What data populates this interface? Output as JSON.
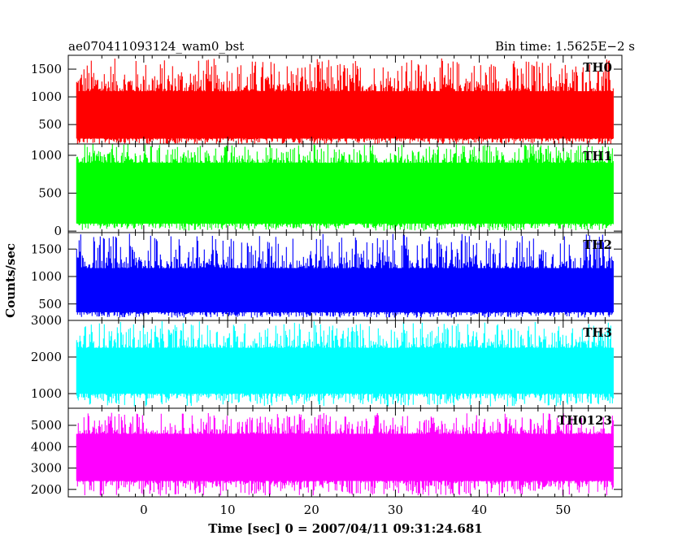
{
  "header": {
    "left_title": "ae070411093124_wam0_bst",
    "right_title": "Bin time: 1.5625E−2 s"
  },
  "chart_data": {
    "type": "line",
    "xlabel": "Time [sec] 0 = 2007/04/11 09:31:24.681",
    "ylabel": "Counts/sec",
    "xlim": [
      -9,
      57
    ],
    "x_ticks": [
      0,
      10,
      20,
      30,
      40,
      50
    ],
    "x_data_range": [
      -8,
      56
    ],
    "panels": [
      {
        "name": "TH0",
        "color": "#ff0000",
        "ylim": [
          150,
          1750
        ],
        "y_ticks": [
          500,
          1000,
          1500
        ],
        "band": [
          250,
          1100
        ],
        "max_peak": 1700,
        "min_dip": 130
      },
      {
        "name": "TH1",
        "color": "#00ff00",
        "ylim": [
          -20,
          1150
        ],
        "y_ticks": [
          0,
          500,
          1000
        ],
        "band": [
          100,
          900
        ],
        "max_peak": 1150,
        "min_dip": 5
      },
      {
        "name": "TH2",
        "color": "#0000ff",
        "ylim": [
          200,
          1800
        ],
        "y_ticks": [
          500,
          1000,
          1500
        ],
        "band": [
          350,
          1150
        ],
        "max_peak": 1780,
        "min_dip": 250
      },
      {
        "name": "TH3",
        "color": "#00ffff",
        "ylim": [
          600,
          3000
        ],
        "y_ticks": [
          1000,
          2000,
          3000
        ],
        "band": [
          1000,
          2250
        ],
        "max_peak": 2980,
        "min_dip": 650
      },
      {
        "name": "TH0123",
        "color": "#ff00ff",
        "ylim": [
          1650,
          5800
        ],
        "y_ticks": [
          2000,
          3000,
          4000,
          5000
        ],
        "band": [
          2400,
          4600
        ],
        "max_peak": 5600,
        "min_dip": 1700
      }
    ]
  }
}
